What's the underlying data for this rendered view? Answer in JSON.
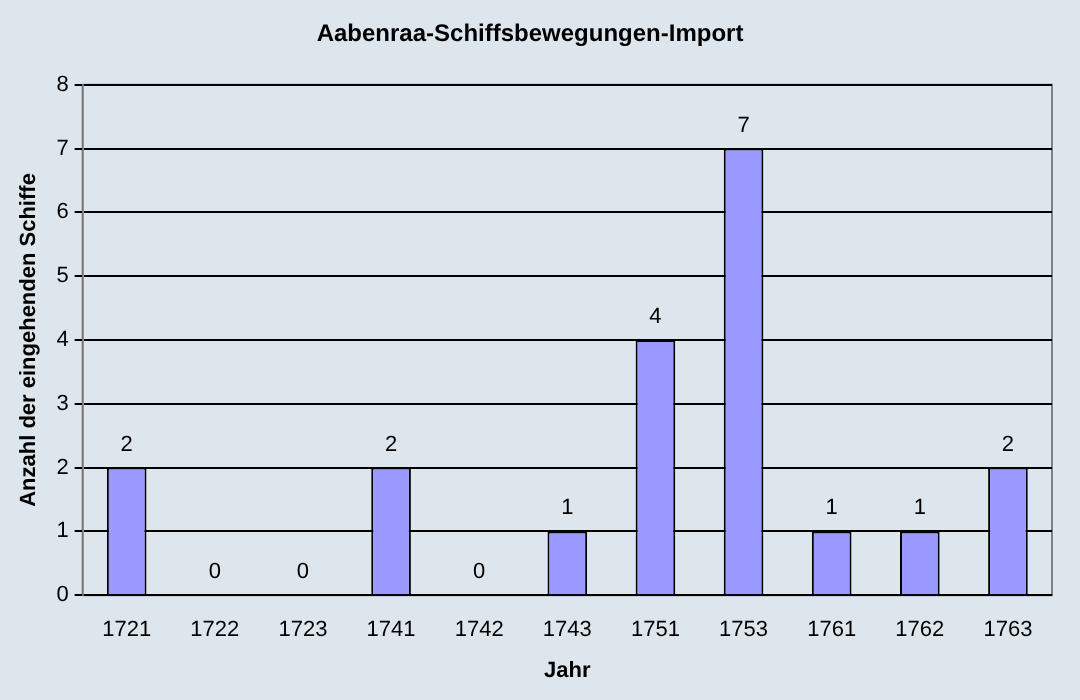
{
  "chart_data": {
    "type": "bar",
    "title": "Aabenraa-Schiffsbewegungen-Import",
    "xlabel": "Jahr",
    "ylabel": "Anzahl der eingehenden Schiffe",
    "categories": [
      "1721",
      "1722",
      "1723",
      "1741",
      "1742",
      "1743",
      "1751",
      "1753",
      "1761",
      "1762",
      "1763"
    ],
    "values": [
      2,
      0,
      0,
      2,
      0,
      1,
      4,
      7,
      1,
      1,
      2
    ],
    "color": "#9999ff",
    "ylim": [
      0,
      8
    ],
    "yticks": [
      0,
      1,
      2,
      3,
      4,
      5,
      6,
      7,
      8
    ],
    "grid": "y",
    "data_labels": true,
    "legend": false
  }
}
